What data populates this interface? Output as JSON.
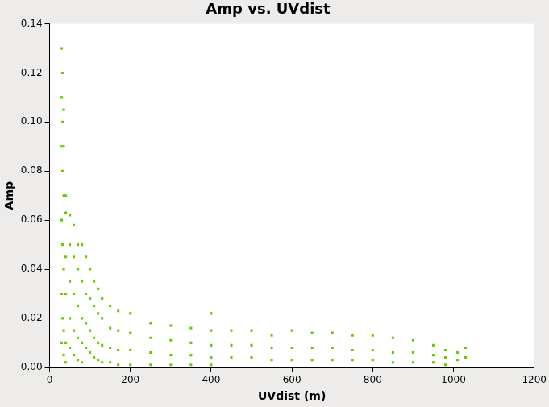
{
  "chart_data": {
    "type": "scatter",
    "title": "Amp vs. UVdist",
    "x_label": "UVdist (m)",
    "y_label": "Amp",
    "color": "#66cc00",
    "marker": "square",
    "grid": false,
    "x": [
      30,
      30,
      30,
      30,
      30,
      30,
      32,
      32,
      32,
      32,
      32,
      35,
      35,
      35,
      35,
      35,
      35,
      40,
      40,
      40,
      40,
      40,
      40,
      50,
      50,
      50,
      50,
      50,
      60,
      60,
      60,
      60,
      60,
      70,
      70,
      70,
      70,
      70,
      80,
      80,
      80,
      80,
      80,
      90,
      90,
      90,
      90,
      100,
      100,
      100,
      100,
      110,
      110,
      110,
      110,
      120,
      120,
      120,
      120,
      130,
      130,
      130,
      130,
      150,
      150,
      150,
      150,
      170,
      170,
      170,
      170,
      200,
      200,
      200,
      200,
      250,
      250,
      250,
      250,
      300,
      300,
      300,
      300,
      350,
      350,
      350,
      350,
      400,
      400,
      400,
      400,
      400,
      450,
      450,
      450,
      500,
      500,
      500,
      550,
      550,
      550,
      600,
      600,
      600,
      650,
      650,
      650,
      700,
      700,
      700,
      750,
      750,
      750,
      800,
      800,
      800,
      850,
      850,
      850,
      900,
      900,
      900,
      950,
      950,
      950,
      980,
      980,
      980,
      1010,
      1010,
      1030,
      1030
    ],
    "values": [
      0.13,
      0.11,
      0.09,
      0.06,
      0.03,
      0.01,
      0.12,
      0.1,
      0.08,
      0.05,
      0.02,
      0.105,
      0.09,
      0.07,
      0.04,
      0.015,
      0.005,
      0.07,
      0.063,
      0.045,
      0.03,
      0.01,
      0.002,
      0.062,
      0.05,
      0.035,
      0.02,
      0.008,
      0.058,
      0.045,
      0.03,
      0.015,
      0.005,
      0.05,
      0.04,
      0.025,
      0.012,
      0.003,
      0.05,
      0.035,
      0.02,
      0.01,
      0.002,
      0.045,
      0.03,
      0.018,
      0.008,
      0.04,
      0.028,
      0.015,
      0.006,
      0.035,
      0.025,
      0.012,
      0.004,
      0.032,
      0.022,
      0.01,
      0.003,
      0.028,
      0.02,
      0.009,
      0.002,
      0.025,
      0.016,
      0.008,
      0.002,
      0.023,
      0.015,
      0.007,
      0.001,
      0.022,
      0.014,
      0.007,
      0.001,
      0.018,
      0.012,
      0.006,
      0.001,
      0.017,
      0.011,
      0.005,
      0.001,
      0.016,
      0.01,
      0.005,
      0.001,
      0.022,
      0.015,
      0.009,
      0.004,
      0.001,
      0.015,
      0.009,
      0.004,
      0.015,
      0.009,
      0.004,
      0.013,
      0.008,
      0.003,
      0.015,
      0.008,
      0.003,
      0.014,
      0.008,
      0.003,
      0.014,
      0.008,
      0.003,
      0.013,
      0.007,
      0.003,
      0.013,
      0.007,
      0.003,
      0.012,
      0.006,
      0.002,
      0.011,
      0.006,
      0.002,
      0.009,
      0.005,
      0.002,
      0.007,
      0.004,
      0.001,
      0.006,
      0.003,
      0.008,
      0.004
    ],
    "xlim": [
      0,
      1200
    ],
    "xticks": [
      0,
      200,
      400,
      600,
      800,
      1000,
      1200
    ],
    "ylim": [
      0,
      0.14
    ],
    "yticks": [
      {
        "value": 0,
        "label": "0.00"
      },
      {
        "value": 0.02,
        "label": "0.02"
      },
      {
        "value": 0.04,
        "label": "0.04"
      },
      {
        "value": 0.06,
        "label": "0.06"
      },
      {
        "value": 0.08,
        "label": "0.08"
      },
      {
        "value": 0.1,
        "label": "0.10"
      },
      {
        "value": 0.12,
        "label": "0.12"
      },
      {
        "value": 0.14,
        "label": "0.14"
      }
    ]
  }
}
